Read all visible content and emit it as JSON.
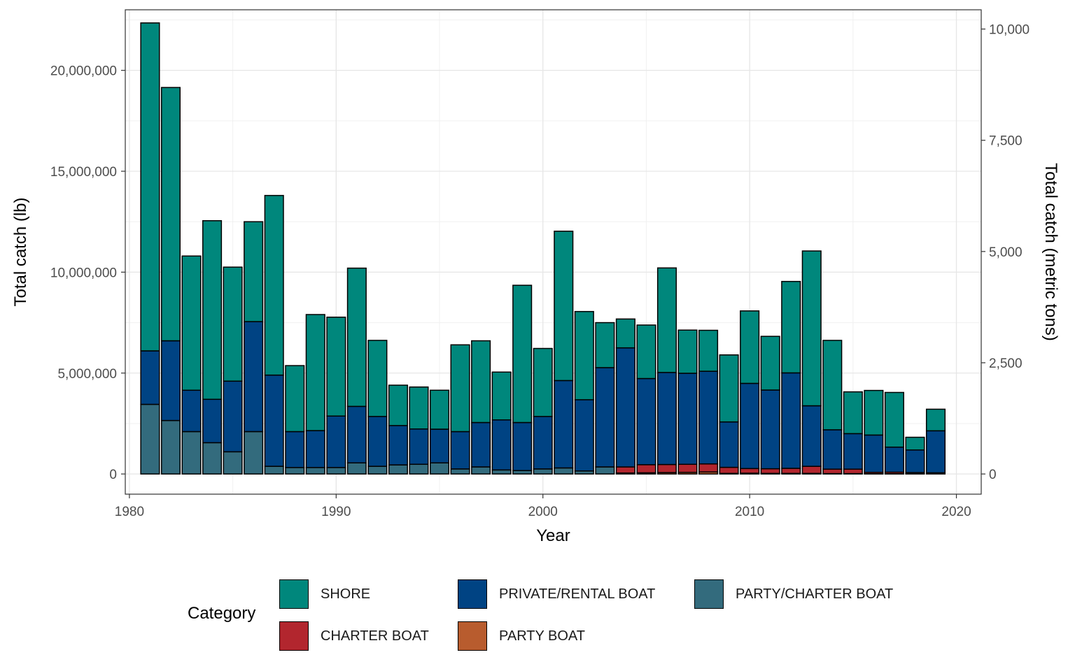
{
  "chart_data": {
    "type": "bar",
    "stacked": true,
    "xlabel": "Year",
    "ylabel": "Total catch (lb)",
    "ylabel_right": "Total catch (metric tons)",
    "x_ticks": [
      1980,
      1990,
      2000,
      2010,
      2020
    ],
    "xlim": [
      1979.8,
      2021.2
    ],
    "ylim": [
      -1000000,
      23000000
    ],
    "y_ticks": [
      0,
      5000000,
      10000000,
      15000000,
      20000000
    ],
    "y_tick_labels": [
      "0",
      "5,000,000",
      "10,000,000",
      "15,000,000",
      "20,000,000"
    ],
    "y_right_ticks": [
      0,
      2500,
      5000,
      7500,
      10000
    ],
    "y_right_tick_labels": [
      "0",
      "2,500",
      "5,000",
      "7,500",
      "10,000"
    ],
    "grid": true,
    "legend_position": "bottom",
    "legend_title": "Category",
    "x": [
      1981,
      1982,
      1983,
      1984,
      1985,
      1986,
      1987,
      1988,
      1989,
      1990,
      1991,
      1992,
      1993,
      1994,
      1995,
      1996,
      1997,
      1998,
      1999,
      2000,
      2001,
      2002,
      2003,
      2004,
      2005,
      2006,
      2007,
      2008,
      2009,
      2010,
      2011,
      2012,
      2013,
      2014,
      2015,
      2016,
      2017,
      2018,
      2019
    ],
    "series": [
      {
        "name": "PARTY BOAT",
        "color": "#b85c2e",
        "values": [
          0,
          0,
          0,
          0,
          0,
          0,
          0,
          0,
          0,
          0,
          0,
          0,
          0,
          0,
          0,
          0,
          0,
          0,
          0,
          0,
          0,
          0,
          0,
          50000,
          60000,
          70000,
          80000,
          100000,
          30000,
          40000,
          30000,
          30000,
          30000,
          20000,
          20000,
          10000,
          10000,
          10000,
          0
        ]
      },
      {
        "name": "CHARTER BOAT",
        "color": "#b2262e",
        "values": [
          0,
          0,
          0,
          0,
          0,
          0,
          0,
          0,
          0,
          0,
          0,
          0,
          0,
          0,
          0,
          0,
          0,
          0,
          0,
          0,
          0,
          0,
          0,
          300000,
          400000,
          400000,
          400000,
          400000,
          300000,
          230000,
          230000,
          250000,
          350000,
          220000,
          220000,
          70000,
          80000,
          60000,
          60000
        ]
      },
      {
        "name": "PARTY/CHARTER BOAT",
        "color": "#336b7d",
        "values": [
          3450000,
          2650000,
          2100000,
          1550000,
          1100000,
          2100000,
          380000,
          320000,
          320000,
          320000,
          550000,
          380000,
          450000,
          480000,
          550000,
          250000,
          350000,
          200000,
          170000,
          250000,
          300000,
          150000,
          350000,
          0,
          0,
          0,
          0,
          0,
          0,
          0,
          0,
          0,
          0,
          0,
          0,
          0,
          0,
          0,
          0
        ]
      },
      {
        "name": "PRIVATE/RENTAL BOAT",
        "color": "#004383",
        "values": [
          2650000,
          3950000,
          2050000,
          2150000,
          3500000,
          5450000,
          4520000,
          1780000,
          1830000,
          2550000,
          2800000,
          2470000,
          1950000,
          1750000,
          1670000,
          1850000,
          2200000,
          2480000,
          2380000,
          2600000,
          4330000,
          3530000,
          4920000,
          5900000,
          4270000,
          4560000,
          4510000,
          4590000,
          2250000,
          4220000,
          3900000,
          4730000,
          3000000,
          1950000,
          1760000,
          1850000,
          1240000,
          1120000,
          2080000
        ]
      },
      {
        "name": "SHORE",
        "color": "#00877c",
        "values": [
          16250000,
          12550000,
          6650000,
          8850000,
          5650000,
          4950000,
          8900000,
          3270000,
          5750000,
          4900000,
          6850000,
          3770000,
          2000000,
          2080000,
          1930000,
          4300000,
          4050000,
          2370000,
          6800000,
          3370000,
          7400000,
          4370000,
          2230000,
          1430000,
          2650000,
          5180000,
          2140000,
          2030000,
          3320000,
          3590000,
          2660000,
          4530000,
          7670000,
          4430000,
          2070000,
          2210000,
          2710000,
          630000,
          1070000
        ]
      }
    ]
  },
  "legend": {
    "title": "Category",
    "items": [
      {
        "label": "SHORE",
        "color": "#00877c"
      },
      {
        "label": "PRIVATE/RENTAL BOAT",
        "color": "#004383"
      },
      {
        "label": "PARTY/CHARTER BOAT",
        "color": "#336b7d"
      },
      {
        "label": "CHARTER BOAT",
        "color": "#b2262e"
      },
      {
        "label": "PARTY BOAT",
        "color": "#b85c2e"
      }
    ]
  }
}
